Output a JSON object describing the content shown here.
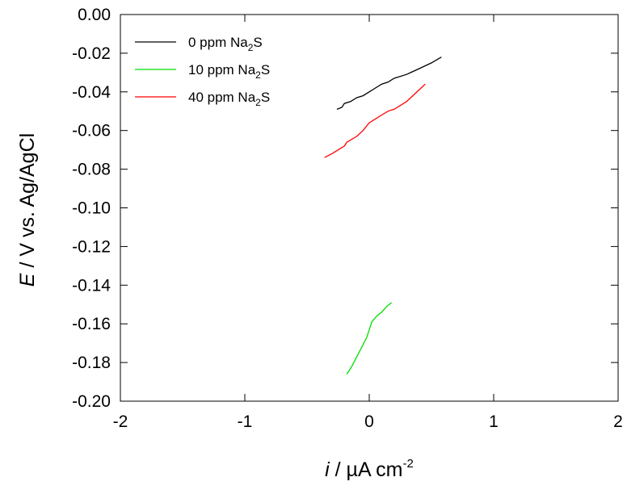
{
  "chart_data": {
    "type": "line",
    "xlabel": {
      "italic": "i",
      "text": " / µA cm",
      "superscript": "-2"
    },
    "ylabel": {
      "italic": "E",
      "text": " / V vs. Ag/AgCl"
    },
    "xlim": [
      -2,
      2
    ],
    "ylim": [
      -0.2,
      0.0
    ],
    "xticks": [
      -2,
      -1,
      0,
      1,
      2
    ],
    "xtick_labels": [
      "-2",
      "-1",
      "0",
      "1",
      "2"
    ],
    "yticks": [
      0.0,
      -0.02,
      -0.04,
      -0.06,
      -0.08,
      -0.1,
      -0.12,
      -0.14,
      -0.16,
      -0.18,
      -0.2
    ],
    "ytick_labels": [
      "0.00",
      "-0.02",
      "-0.04",
      "-0.06",
      "-0.08",
      "-0.10",
      "-0.12",
      "-0.14",
      "-0.16",
      "-0.18",
      "-0.20"
    ],
    "grid": false,
    "legend_position": "top-left",
    "series": [
      {
        "name": "0 ppm Na",
        "name_subscript": "2",
        "name_suffix": "S",
        "color": "#000000",
        "x": [
          -0.26,
          -0.22,
          -0.2,
          -0.15,
          -0.1,
          -0.05,
          0.0,
          0.05,
          0.1,
          0.15,
          0.2,
          0.3,
          0.4,
          0.5,
          0.58
        ],
        "y": [
          -0.049,
          -0.048,
          -0.046,
          -0.045,
          -0.043,
          -0.042,
          -0.04,
          -0.038,
          -0.036,
          -0.035,
          -0.033,
          -0.031,
          -0.028,
          -0.025,
          -0.022
        ]
      },
      {
        "name": "10 ppm Na",
        "name_subscript": "2",
        "name_suffix": "S",
        "color": "#00dd00",
        "x": [
          -0.18,
          -0.14,
          -0.1,
          -0.06,
          -0.02,
          0.0,
          0.02,
          0.06,
          0.1,
          0.14,
          0.18
        ],
        "y": [
          -0.186,
          -0.182,
          -0.177,
          -0.172,
          -0.167,
          -0.163,
          -0.159,
          -0.156,
          -0.154,
          -0.151,
          -0.149
        ]
      },
      {
        "name": "40 ppm Na",
        "name_subscript": "2",
        "name_suffix": "S",
        "color": "#ff0000",
        "x": [
          -0.36,
          -0.3,
          -0.25,
          -0.2,
          -0.18,
          -0.1,
          -0.05,
          0.0,
          0.05,
          0.1,
          0.15,
          0.2,
          0.3,
          0.35,
          0.4,
          0.45
        ],
        "y": [
          -0.074,
          -0.072,
          -0.07,
          -0.068,
          -0.066,
          -0.063,
          -0.06,
          -0.056,
          -0.054,
          -0.052,
          -0.05,
          -0.049,
          -0.045,
          -0.042,
          -0.039,
          -0.036
        ]
      }
    ]
  }
}
